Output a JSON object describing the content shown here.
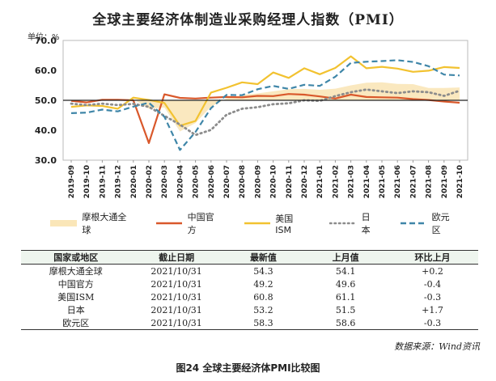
{
  "chart_data": {
    "type": "line",
    "title": "全球主要经济体制造业采购经理人指数（PMI）",
    "unit_label": "单位：%",
    "ylim": [
      30,
      70
    ],
    "yticks": [
      "30.0",
      "40.0",
      "50.0",
      "60.0",
      "70.0"
    ],
    "categories": [
      "2019-09",
      "2019-10",
      "2019-11",
      "2019-12",
      "2020-01",
      "2020-02",
      "2020-03",
      "2020-04",
      "2020-05",
      "2020-06",
      "2020-07",
      "2020-08",
      "2020-09",
      "2020-10",
      "2020-11",
      "2020-12",
      "2021-01",
      "2021-02",
      "2021-03",
      "2021-04",
      "2021-05",
      "2021-06",
      "2021-07",
      "2021-08",
      "2021-09",
      "2021-10"
    ],
    "series": [
      {
        "name": "摩根大通全球",
        "style": "band",
        "color": "#fae6b8",
        "values": [
          49.7,
          49.8,
          50.3,
          50.1,
          50.4,
          47.2,
          47.6,
          39.6,
          42.4,
          47.9,
          50.6,
          51.8,
          52.3,
          53.0,
          53.7,
          53.8,
          53.5,
          53.9,
          55.0,
          55.9,
          56.0,
          55.5,
          55.4,
          54.1,
          54.1,
          54.3
        ]
      },
      {
        "name": "中国官方",
        "style": "solid",
        "color": "#d9582b",
        "values": [
          49.8,
          49.3,
          50.2,
          50.2,
          50.0,
          35.7,
          52.0,
          50.8,
          50.6,
          50.9,
          51.1,
          51.0,
          51.5,
          51.4,
          52.1,
          51.9,
          51.3,
          50.6,
          51.9,
          51.1,
          51.0,
          50.9,
          50.4,
          50.1,
          49.6,
          49.2
        ]
      },
      {
        "name": "美国ISM",
        "style": "solid",
        "color": "#f2c230",
        "values": [
          47.8,
          48.3,
          48.1,
          47.2,
          50.9,
          50.1,
          49.1,
          41.5,
          43.1,
          52.6,
          54.2,
          56.0,
          55.4,
          59.3,
          57.5,
          60.7,
          58.7,
          60.8,
          64.7,
          60.7,
          61.2,
          60.6,
          59.5,
          59.9,
          61.1,
          60.8
        ]
      },
      {
        "name": "日本",
        "style": "dotted",
        "color": "#8c8c8c",
        "values": [
          48.9,
          48.4,
          48.9,
          48.4,
          48.8,
          47.8,
          44.8,
          41.9,
          38.4,
          40.1,
          45.2,
          47.2,
          47.7,
          48.7,
          49.0,
          50.0,
          49.8,
          51.4,
          52.7,
          53.6,
          53.0,
          52.4,
          53.0,
          52.7,
          51.5,
          53.2
        ]
      },
      {
        "name": "欧元区",
        "style": "dashed",
        "color": "#3f86a8",
        "values": [
          45.7,
          45.9,
          46.9,
          46.3,
          47.9,
          49.2,
          44.5,
          33.4,
          39.4,
          47.4,
          51.8,
          51.7,
          53.7,
          54.8,
          53.8,
          55.2,
          54.8,
          57.9,
          62.5,
          62.9,
          63.1,
          63.4,
          62.8,
          61.4,
          58.6,
          58.3
        ]
      }
    ]
  },
  "table": {
    "headers": [
      "国家或地区",
      "截止日期",
      "最新值",
      "上月值",
      "环比上月"
    ],
    "rows": [
      [
        "摩根大通全球",
        "2021/10/31",
        "54.3",
        "54.1",
        "+0.2"
      ],
      [
        "中国官方",
        "2021/10/31",
        "49.2",
        "49.6",
        "-0.4"
      ],
      [
        "美国ISM",
        "2021/10/31",
        "60.8",
        "61.1",
        "-0.3"
      ],
      [
        "日本",
        "2021/10/31",
        "53.2",
        "51.5",
        "+1.7"
      ],
      [
        "欧元区",
        "2021/10/31",
        "58.3",
        "58.6",
        "-0.3"
      ]
    ]
  },
  "source": "数据来源：Wind资讯",
  "caption": "图24   全球主要经济体PMI比较图"
}
